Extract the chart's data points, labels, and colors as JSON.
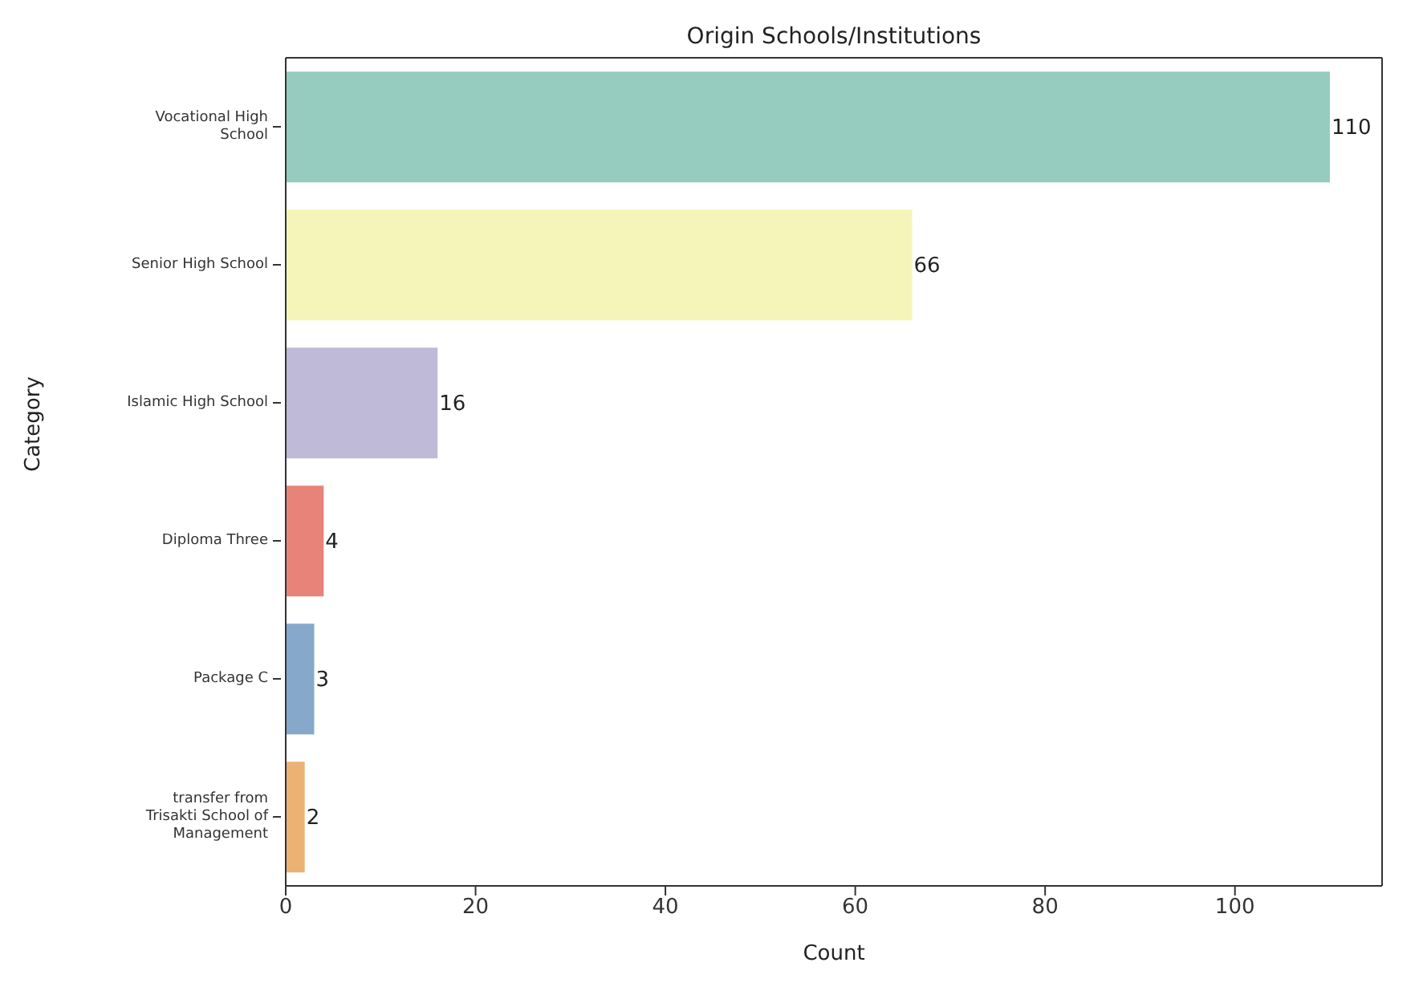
{
  "chart_data": {
    "type": "bar",
    "orientation": "horizontal",
    "title": "Origin Schools/Institutions",
    "xlabel": "Count",
    "ylabel": "Category",
    "categories": [
      "Vocational High\nSchool",
      "Senior High School",
      "Islamic High School",
      "Diploma Three",
      "Package C",
      "transfer from\nTrisakti School of\nManagement"
    ],
    "values": [
      110,
      66,
      16,
      4,
      3,
      2
    ],
    "colors": [
      "#96cbbf",
      "#f6f5b9",
      "#bfbad8",
      "#e8837a",
      "#86a9cb",
      "#ecb274"
    ],
    "xlim": [
      0,
      115.5
    ],
    "xticks": [
      0,
      20,
      40,
      60,
      80,
      100
    ],
    "data_labels": true,
    "grid": false
  }
}
